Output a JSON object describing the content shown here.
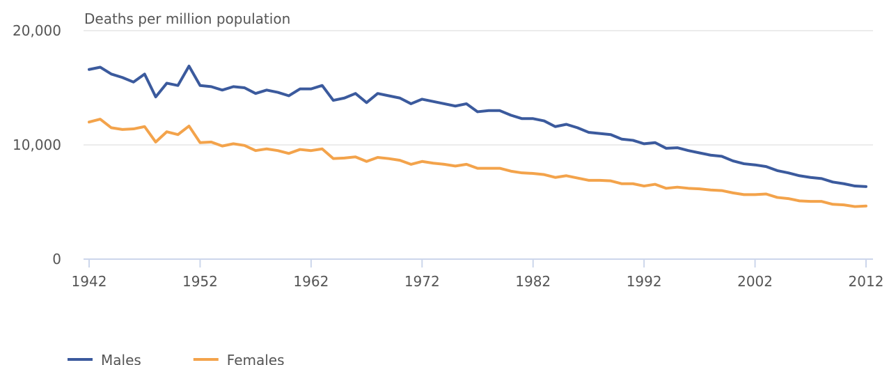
{
  "chart_data": {
    "type": "line",
    "title": "Deaths per million population",
    "x": [
      1942,
      1943,
      1944,
      1945,
      1946,
      1947,
      1948,
      1949,
      1950,
      1951,
      1952,
      1953,
      1954,
      1955,
      1956,
      1957,
      1958,
      1959,
      1960,
      1961,
      1962,
      1963,
      1964,
      1965,
      1966,
      1967,
      1968,
      1969,
      1970,
      1971,
      1972,
      1973,
      1974,
      1975,
      1976,
      1977,
      1978,
      1979,
      1980,
      1981,
      1982,
      1983,
      1984,
      1985,
      1986,
      1987,
      1988,
      1989,
      1990,
      1991,
      1992,
      1993,
      1994,
      1995,
      1996,
      1997,
      1998,
      1999,
      2000,
      2001,
      2002,
      2003,
      2004,
      2005,
      2006,
      2007,
      2008,
      2009,
      2010,
      2011,
      2012
    ],
    "series": [
      {
        "name": "Males",
        "color": "#3b5a9d",
        "values": [
          16600,
          16800,
          16200,
          15900,
          15500,
          16200,
          14200,
          15400,
          15200,
          16900,
          15200,
          15100,
          14800,
          15100,
          15000,
          14500,
          14800,
          14600,
          14300,
          14900,
          14900,
          15200,
          13900,
          14100,
          14500,
          13700,
          14500,
          14300,
          14100,
          13600,
          14000,
          13800,
          13600,
          13400,
          13600,
          12900,
          13000,
          13000,
          12600,
          12300,
          12300,
          12100,
          11600,
          11800,
          11500,
          11100,
          11000,
          10900,
          10500,
          10400,
          10100,
          10200,
          9700,
          9750,
          9500,
          9300,
          9100,
          9000,
          8600,
          8350,
          8250,
          8100,
          7750,
          7550,
          7300,
          7150,
          7050,
          6750,
          6600,
          6400,
          6350
        ]
      },
      {
        "name": "Females",
        "color": "#f3a34b",
        "values": [
          12000,
          12250,
          11500,
          11350,
          11400,
          11600,
          10250,
          11150,
          10900,
          11650,
          10200,
          10250,
          9900,
          10100,
          9950,
          9500,
          9650,
          9500,
          9250,
          9600,
          9500,
          9650,
          8800,
          8850,
          8950,
          8550,
          8900,
          8800,
          8650,
          8300,
          8550,
          8400,
          8300,
          8150,
          8300,
          7950,
          7950,
          7950,
          7700,
          7550,
          7500,
          7400,
          7150,
          7300,
          7100,
          6900,
          6900,
          6850,
          6600,
          6600,
          6400,
          6550,
          6200,
          6300,
          6200,
          6150,
          6050,
          6000,
          5800,
          5650,
          5650,
          5700,
          5400,
          5300,
          5100,
          5050,
          5050,
          4800,
          4750,
          4600,
          4650
        ]
      }
    ],
    "xlim": [
      1942,
      2012
    ],
    "xticks": [
      1942,
      1952,
      1962,
      1972,
      1982,
      1992,
      2002,
      2012
    ],
    "ylim": [
      0,
      20000
    ],
    "yticks": [
      0,
      {
        "value": 10000,
        "label": "10,000"
      },
      {
        "value": 20000,
        "label": "20,000"
      }
    ],
    "grid": true,
    "legend": "bottom"
  }
}
